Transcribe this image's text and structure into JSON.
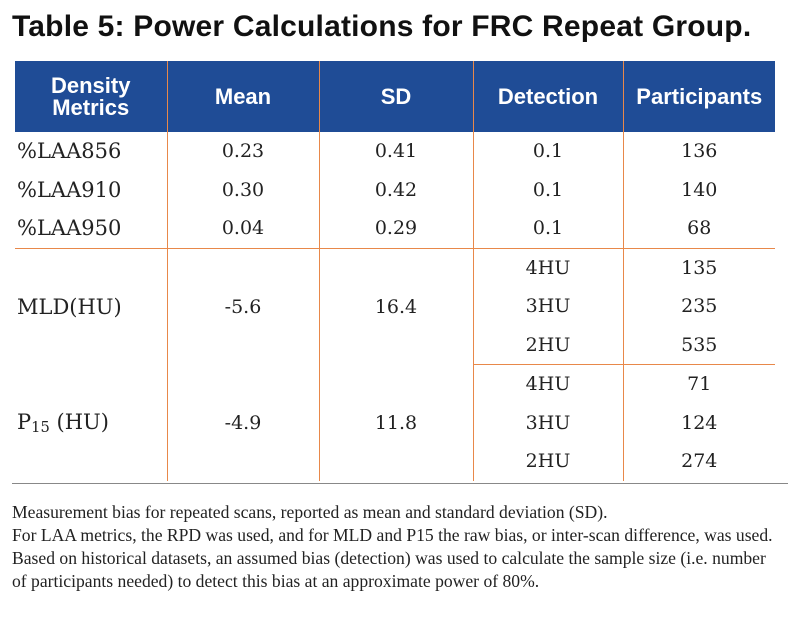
{
  "title": "Table 5: Power Calculations for FRC Repeat Group.",
  "table": {
    "headers": [
      "Density Metrics",
      "Mean",
      "SD",
      "Detection",
      "Participants"
    ],
    "rows": [
      {
        "metric": "%LAA856",
        "mean": "0.23",
        "sd": "0.41",
        "detection": "0.1",
        "participants": "136"
      },
      {
        "metric": "%LAA910",
        "mean": "0.30",
        "sd": "0.42",
        "detection": "0.1",
        "participants": "140"
      },
      {
        "metric": "%LAA950",
        "mean": "0.04",
        "sd": "0.29",
        "detection": "0.1",
        "participants": "68"
      },
      {
        "metric": "MLD(HU)",
        "mean": "-5.6",
        "sd": "16.4",
        "detection": "4HU",
        "participants": "135"
      },
      {
        "detection": "3HU",
        "participants": "235"
      },
      {
        "detection": "2HU",
        "participants": "535"
      },
      {
        "metric_base": "P",
        "metric_sub": "15",
        "metric_unit": " (HU)",
        "mean": "-4.9",
        "sd": "11.8",
        "detection": "4HU",
        "participants": "71"
      },
      {
        "detection": "3HU",
        "participants": "124"
      },
      {
        "detection": "2HU",
        "participants": "274"
      }
    ]
  },
  "notes": [
    "Measurement bias for repeated scans, reported as mean and standard deviation (SD).",
    "For LAA metrics, the RPD was used, and for MLD and P15 the raw bias, or inter-scan difference, was used.",
    "Based on historical datasets, an assumed bias (detection) was used to calculate the sample size (i.e. number",
    "of participants needed) to detect this bias at an approximate power of 80%."
  ],
  "colors": {
    "header_bg": "#1f4c96",
    "rule": "#e8884a"
  }
}
